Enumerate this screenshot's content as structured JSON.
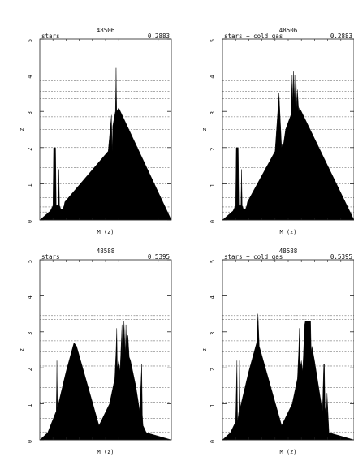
{
  "chart_data": [
    {
      "type": "area",
      "id_label": "48506",
      "left_label": "stars",
      "right_label": "0.2883",
      "xlabel": "M (z)",
      "ylabel": "z",
      "ylim": [
        0,
        5
      ],
      "yticks": [
        "0",
        "1",
        "2",
        "3",
        "4",
        "5"
      ],
      "guide_lines_y": [
        0.22,
        0.36,
        0.62,
        1.0,
        1.45,
        2.0,
        2.5,
        2.85,
        3.35,
        3.55,
        3.85,
        4.0
      ],
      "x": [
        0.0,
        0.08,
        0.1,
        0.105,
        0.11,
        0.12,
        0.125,
        0.135,
        0.14,
        0.145,
        0.15,
        0.16,
        0.17,
        0.175,
        0.185,
        0.19,
        0.52,
        0.545,
        0.55,
        0.555,
        0.575,
        0.58,
        0.585,
        0.6,
        1.0
      ],
      "y": [
        0.0,
        0.25,
        0.4,
        2.0,
        2.0,
        2.0,
        0.4,
        0.4,
        0.4,
        1.4,
        0.4,
        0.3,
        0.3,
        0.3,
        0.4,
        0.5,
        1.9,
        2.9,
        1.9,
        2.6,
        3.0,
        4.2,
        3.0,
        3.1,
        0.0
      ]
    },
    {
      "type": "area",
      "id_label": "48506",
      "left_label": "stars + cold gas",
      "right_label": "0.2883",
      "xlabel": "M (z)",
      "ylabel": "z",
      "ylim": [
        0,
        5
      ],
      "yticks": [
        "0",
        "1",
        "2",
        "3",
        "4",
        "5"
      ],
      "guide_lines_y": [
        0.22,
        0.36,
        0.62,
        1.0,
        1.45,
        2.0,
        2.5,
        2.85,
        3.35,
        3.55,
        3.85,
        4.0
      ],
      "x": [
        0.0,
        0.08,
        0.1,
        0.105,
        0.11,
        0.12,
        0.125,
        0.135,
        0.14,
        0.145,
        0.15,
        0.16,
        0.17,
        0.175,
        0.185,
        0.19,
        0.4,
        0.43,
        0.45,
        0.455,
        0.46,
        0.48,
        0.52,
        0.53,
        0.535,
        0.54,
        0.545,
        0.55,
        0.555,
        0.56,
        0.565,
        0.57,
        0.58,
        0.585,
        0.6,
        1.0
      ],
      "y": [
        0.0,
        0.25,
        0.4,
        2.0,
        2.0,
        2.0,
        0.4,
        0.4,
        0.4,
        1.4,
        0.4,
        0.3,
        0.3,
        0.3,
        0.4,
        0.5,
        1.9,
        3.5,
        2.0,
        2.1,
        2.0,
        2.5,
        2.9,
        4.0,
        3.2,
        4.1,
        3.3,
        4.0,
        3.2,
        3.8,
        3.1,
        3.6,
        3.0,
        3.1,
        3.0,
        0.0
      ]
    },
    {
      "type": "area",
      "id_label": "48588",
      "left_label": "stars",
      "right_label": "0.5395",
      "xlabel": "M (z)",
      "ylabel": "z",
      "ylim": [
        0,
        5
      ],
      "yticks": [
        "0",
        "1",
        "2",
        "3",
        "4",
        "5"
      ],
      "guide_lines_y": [
        0.22,
        0.6,
        1.05,
        1.45,
        1.75,
        2.05,
        2.45,
        2.75,
        3.05,
        3.35,
        3.45
      ],
      "x": [
        0.0,
        0.06,
        0.125,
        0.13,
        0.135,
        0.2,
        0.26,
        0.27,
        0.28,
        0.45,
        0.53,
        0.57,
        0.58,
        0.585,
        0.59,
        0.6,
        0.61,
        0.625,
        0.63,
        0.64,
        0.65,
        0.655,
        0.66,
        0.67,
        0.68,
        0.69,
        0.73,
        0.76,
        0.775,
        0.78,
        0.785,
        0.81,
        1.0
      ],
      "y": [
        0.0,
        0.2,
        0.8,
        2.2,
        0.9,
        1.9,
        2.7,
        2.65,
        2.6,
        0.4,
        1.0,
        1.7,
        2.5,
        3.1,
        2.0,
        2.2,
        1.9,
        3.2,
        2.3,
        3.3,
        2.4,
        3.2,
        2.6,
        2.9,
        2.3,
        2.2,
        1.5,
        0.8,
        2.1,
        0.7,
        0.4,
        0.2,
        0.0
      ]
    },
    {
      "type": "area",
      "id_label": "48588",
      "left_label": "stars + cold gas",
      "right_label": "0.5395",
      "xlabel": "M (z)",
      "ylabel": "z",
      "ylim": [
        0,
        5
      ],
      "yticks": [
        "0",
        "1",
        "2",
        "3",
        "4",
        "5"
      ],
      "guide_lines_y": [
        0.22,
        0.6,
        1.05,
        1.45,
        1.75,
        2.05,
        2.45,
        2.75,
        3.05,
        3.35,
        3.45
      ],
      "x": [
        0.0,
        0.06,
        0.1,
        0.11,
        0.115,
        0.125,
        0.13,
        0.135,
        0.2,
        0.26,
        0.27,
        0.28,
        0.45,
        0.53,
        0.57,
        0.58,
        0.585,
        0.59,
        0.6,
        0.61,
        0.625,
        0.63,
        0.635,
        0.67,
        0.675,
        0.68,
        0.7,
        0.73,
        0.76,
        0.77,
        0.775,
        0.78,
        0.79,
        0.795,
        0.81,
        1.0
      ],
      "y": [
        0.0,
        0.2,
        0.5,
        2.2,
        0.5,
        0.8,
        2.2,
        0.9,
        1.9,
        2.7,
        3.5,
        2.6,
        0.4,
        1.0,
        1.7,
        2.5,
        3.1,
        2.0,
        2.2,
        1.9,
        3.2,
        3.3,
        3.3,
        3.3,
        2.4,
        2.6,
        2.2,
        1.5,
        0.8,
        2.1,
        2.1,
        0.9,
        0.7,
        1.3,
        0.2,
        0.0
      ]
    }
  ]
}
